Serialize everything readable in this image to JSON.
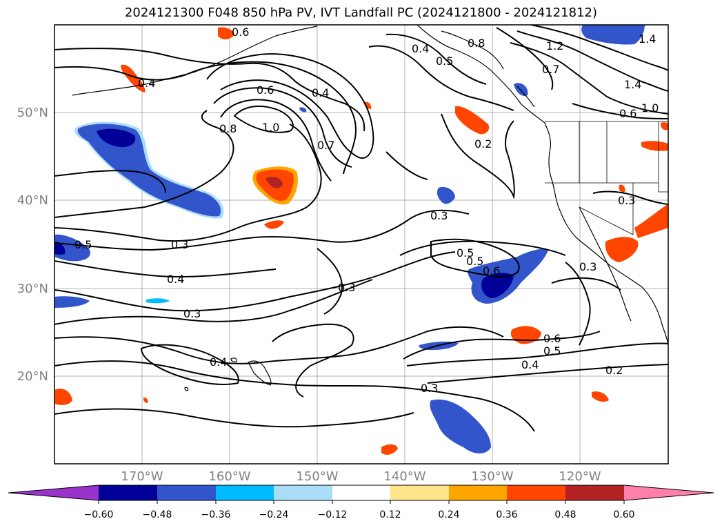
{
  "map": {
    "title": "2024121300 F048 850 hPa PV, IVT Landfall PC (2024121800 - 2024121812)",
    "lat_labels": [
      "50°N",
      "40°N",
      "30°N",
      "20°N"
    ],
    "lon_labels": [
      "170°W",
      "160°W",
      "150°W",
      "140°W",
      "130°W",
      "120°W"
    ],
    "contour_labels": [
      "0.6",
      "0.4",
      "0.5",
      "0.8",
      "0.4",
      "0.5",
      "1.2",
      "1.4",
      "1.0",
      "0.7",
      "0.6",
      "0.6",
      "0.8",
      "1.0",
      "0.7",
      "0.2",
      "0.3",
      "0.3",
      "0.5",
      "0.3",
      "0.5",
      "0.6",
      "0.4",
      "0.3",
      "0.3",
      "0.3",
      "0.4",
      "0.6",
      "0.5",
      "0.4",
      "0.2",
      "0.3",
      "1.4",
      "0.4"
    ],
    "colors": {
      "neg_purple": "#9933CC",
      "neg_navy": "#000099",
      "neg_blue": "#3355CC",
      "neg_cyan": "#00BBFF",
      "neg_light": "#AADDF8",
      "pos_yellow": "#FFE58A",
      "pos_orange": "#FFA500",
      "pos_redorange": "#FF4500",
      "pos_firebrick": "#B22222",
      "pos_pink": "#FF80AA"
    }
  },
  "colorbar": {
    "ticks": [
      "−0.60",
      "−0.48",
      "−0.36",
      "−0.24",
      "−0.12",
      "0.12",
      "0.24",
      "0.36",
      "0.48",
      "0.60"
    ]
  }
}
